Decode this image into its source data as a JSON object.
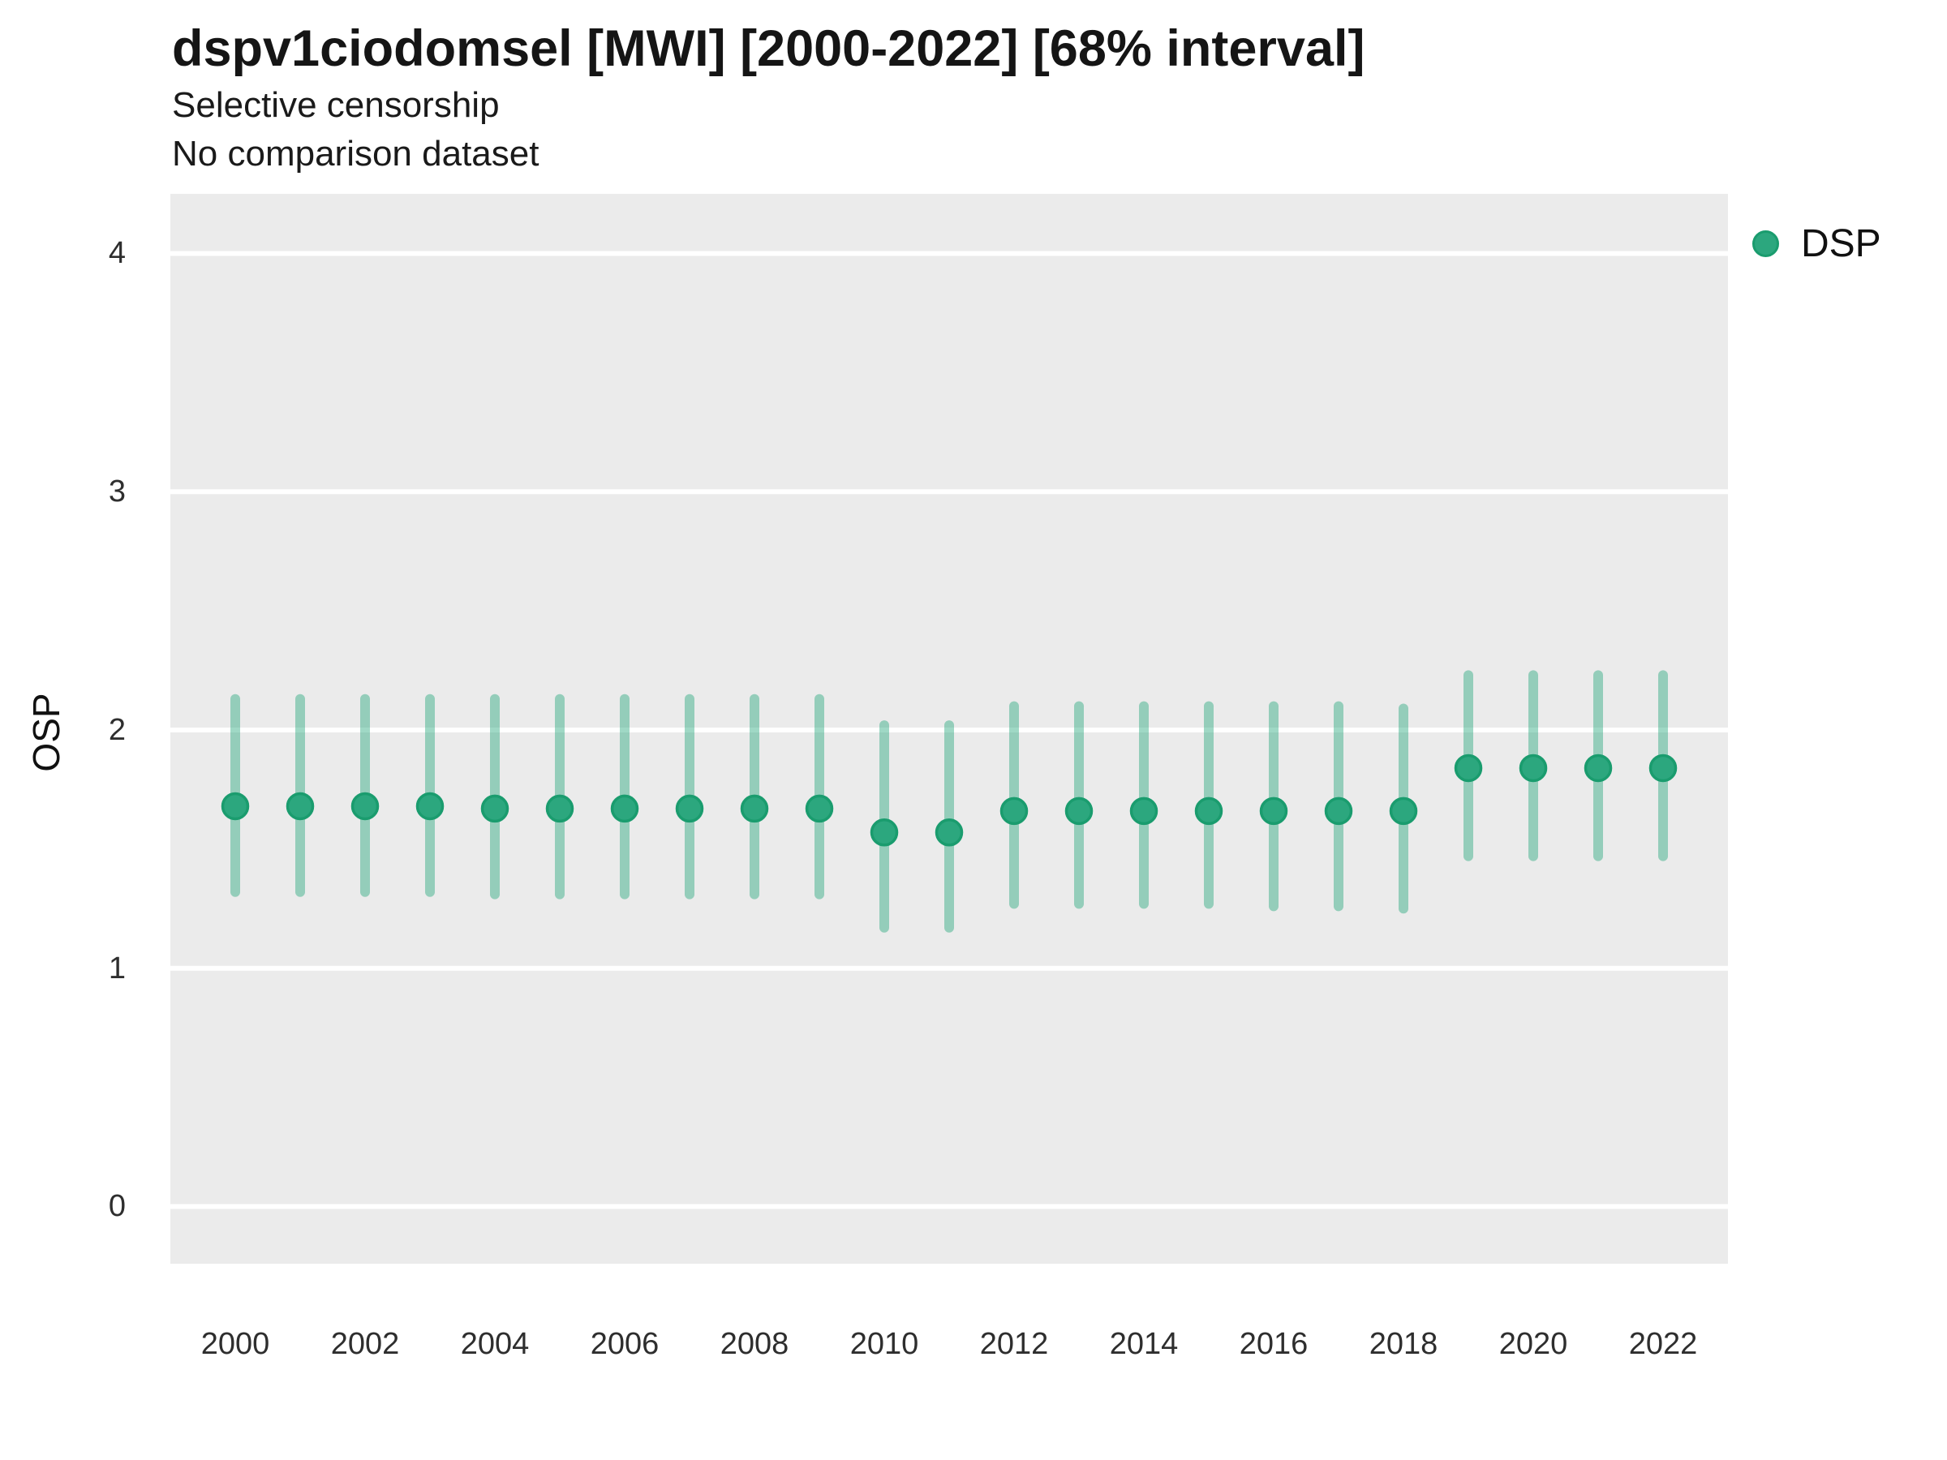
{
  "title": "dspv1ciodomsel [MWI] [2000-2022] [68% interval]",
  "subtitle": "Selective censorship",
  "note": "No comparison dataset",
  "axes": {
    "y_title": "OSP",
    "y_ticks": [
      0,
      1,
      2,
      3,
      4
    ],
    "x_ticks": [
      2000,
      2002,
      2004,
      2006,
      2008,
      2010,
      2012,
      2014,
      2016,
      2018,
      2020,
      2022
    ]
  },
  "legend": {
    "items": [
      {
        "label": "DSP",
        "color": "#2ca77e"
      }
    ]
  },
  "colors": {
    "panel_background": "#ebebeb",
    "gridline": "#ffffff",
    "point_fill": "#2ca77e",
    "point_stroke": "#1a9c6e",
    "errorbar": "rgba(42,169,126,0.45)",
    "text": "#1a1a1a"
  },
  "chart_data": {
    "type": "scatter",
    "title": "dspv1ciodomsel [MWI] [2000-2022] [68% interval]",
    "subtitle": "Selective censorship",
    "note": "No comparison dataset",
    "xlabel": "",
    "ylabel": "OSP",
    "interval": "68%",
    "xlim": [
      1999,
      2023
    ],
    "ylim": [
      -0.24,
      4.25
    ],
    "grid": "major-horizontal-only",
    "legend_position": "top-right",
    "x": [
      2000,
      2001,
      2002,
      2003,
      2004,
      2005,
      2006,
      2007,
      2008,
      2009,
      2010,
      2011,
      2012,
      2013,
      2014,
      2015,
      2016,
      2017,
      2018,
      2019,
      2020,
      2021,
      2022
    ],
    "series": [
      {
        "name": "DSP",
        "values": [
          1.68,
          1.68,
          1.68,
          1.68,
          1.67,
          1.67,
          1.67,
          1.67,
          1.67,
          1.67,
          1.57,
          1.57,
          1.66,
          1.66,
          1.66,
          1.66,
          1.66,
          1.66,
          1.66,
          1.84,
          1.84,
          1.84,
          1.84
        ],
        "interval_low": [
          1.32,
          1.32,
          1.32,
          1.32,
          1.31,
          1.31,
          1.31,
          1.31,
          1.31,
          1.31,
          1.17,
          1.17,
          1.27,
          1.27,
          1.27,
          1.27,
          1.26,
          1.26,
          1.25,
          1.47,
          1.47,
          1.47,
          1.47
        ],
        "interval_high": [
          2.13,
          2.13,
          2.13,
          2.13,
          2.13,
          2.13,
          2.13,
          2.13,
          2.13,
          2.13,
          2.02,
          2.02,
          2.1,
          2.1,
          2.1,
          2.1,
          2.1,
          2.1,
          2.09,
          2.23,
          2.23,
          2.23,
          2.23
        ]
      }
    ]
  }
}
